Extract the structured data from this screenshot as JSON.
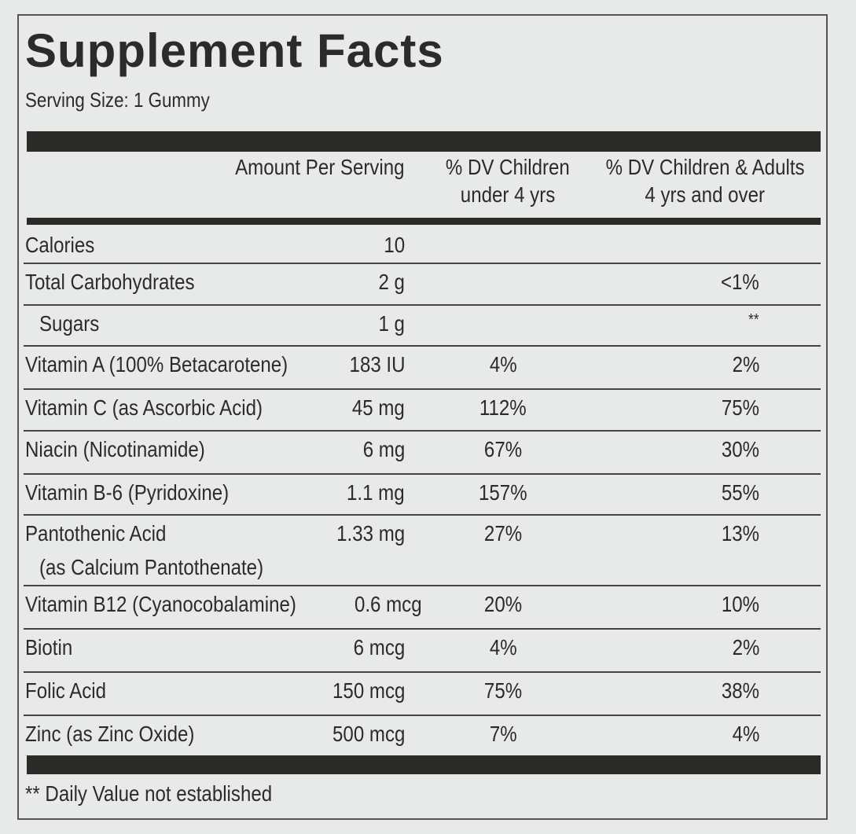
{
  "title": "Supplement Facts",
  "serving_size": "Serving Size: 1 Gummy",
  "header": {
    "amount": "Amount Per Serving",
    "dv_child": [
      "% DV Children",
      "under 4 yrs"
    ],
    "dv_adult": [
      "% DV Children & Adults",
      "4 yrs and over"
    ]
  },
  "rows": [
    {
      "name": "Calories",
      "amount": "10",
      "dv_child": null,
      "dv_adult": null
    },
    {
      "name": "Total Carbohydrates",
      "amount": "2 g",
      "dv_child": null,
      "dv_adult": "<1%"
    },
    {
      "name": "Sugars",
      "amount": "1 g",
      "dv_child": null,
      "dv_adult": "**"
    },
    {
      "name": "Vitamin A (100% Betacarotene)",
      "amount": "183 IU",
      "dv_child": "4%",
      "dv_adult": "2%"
    },
    {
      "name": "Vitamin C (as Ascorbic Acid)",
      "amount": "45 mg",
      "dv_child": "112%",
      "dv_adult": "75%"
    },
    {
      "name": "Niacin (Nicotinamide)",
      "amount": "6 mg",
      "dv_child": "67%",
      "dv_adult": "30%"
    },
    {
      "name": "Vitamin B-6 (Pyridoxine)",
      "amount": "1.1 mg",
      "dv_child": "157%",
      "dv_adult": "55%"
    },
    {
      "name": "Pantothenic Acid",
      "note": "(as Calcium Pantothenate)",
      "amount": "1.33 mg",
      "dv_child": "27%",
      "dv_adult": "13%"
    },
    {
      "name": "Vitamin B12 (Cyanocobalamine)",
      "amount": "0.6 mcg",
      "dv_child": "20%",
      "dv_adult": "10%"
    },
    {
      "name": "Biotin",
      "amount": "6 mcg",
      "dv_child": "4%",
      "dv_adult": "2%"
    },
    {
      "name": "Folic Acid",
      "amount": "150 mcg",
      "dv_child": "75%",
      "dv_adult": "38%"
    },
    {
      "name": "Zinc (as Zinc Oxide)",
      "amount": "500 mcg",
      "dv_child": "7%",
      "dv_adult": "4%"
    }
  ],
  "footnote": "** Daily Value not established"
}
